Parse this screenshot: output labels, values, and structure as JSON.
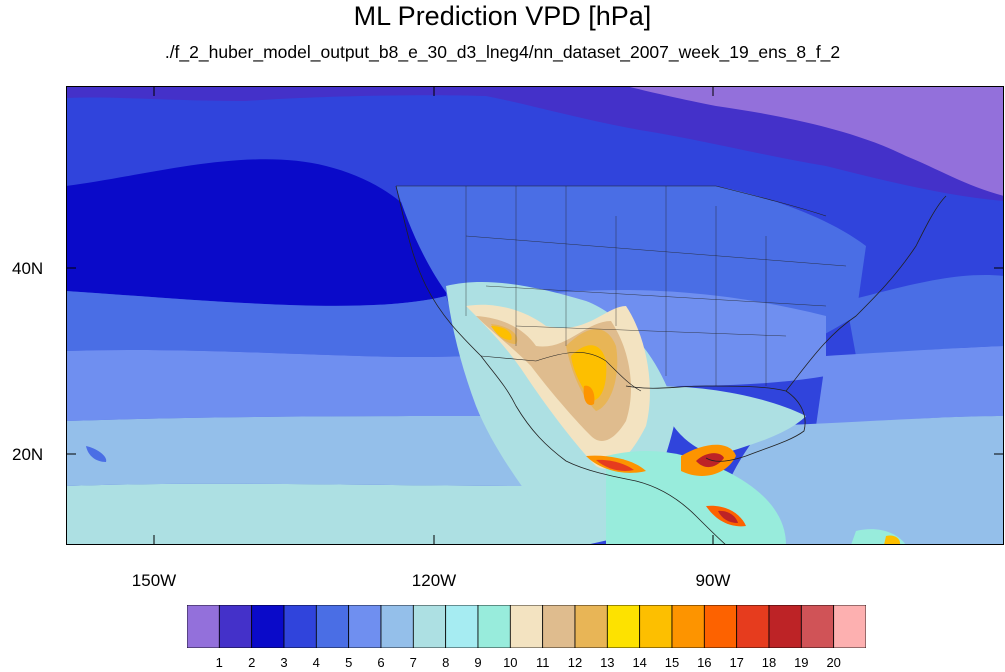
{
  "title": "ML Prediction VPD [hPa]",
  "subtitle": "./f_2_huber_model_output_b8_e_30_d3_lneg4/nn_dataset_2007_week_19_ens_8_f_2",
  "x_ticks": [
    "150W",
    "120W",
    "90W"
  ],
  "y_ticks": [
    "40N",
    "20N"
  ],
  "colorbar": {
    "labels": [
      "1",
      "2",
      "3",
      "4",
      "5",
      "6",
      "7",
      "8",
      "9",
      "10",
      "11",
      "12",
      "13",
      "14",
      "15",
      "16",
      "17",
      "18",
      "19",
      "20"
    ],
    "colors": [
      "#9370db",
      "#4431c9",
      "#0a0ac9",
      "#3044dc",
      "#4a6ee5",
      "#6f8ff0",
      "#94bfea",
      "#ade0e3",
      "#a6ecf2",
      "#98ecdc",
      "#f3e3c1",
      "#dfbc8e",
      "#e8b556",
      "#fde200",
      "#fdbf00",
      "#fd9400",
      "#fd6200",
      "#e63c1e",
      "#bd2326",
      "#d05357",
      "#fdb0b0"
    ]
  }
}
